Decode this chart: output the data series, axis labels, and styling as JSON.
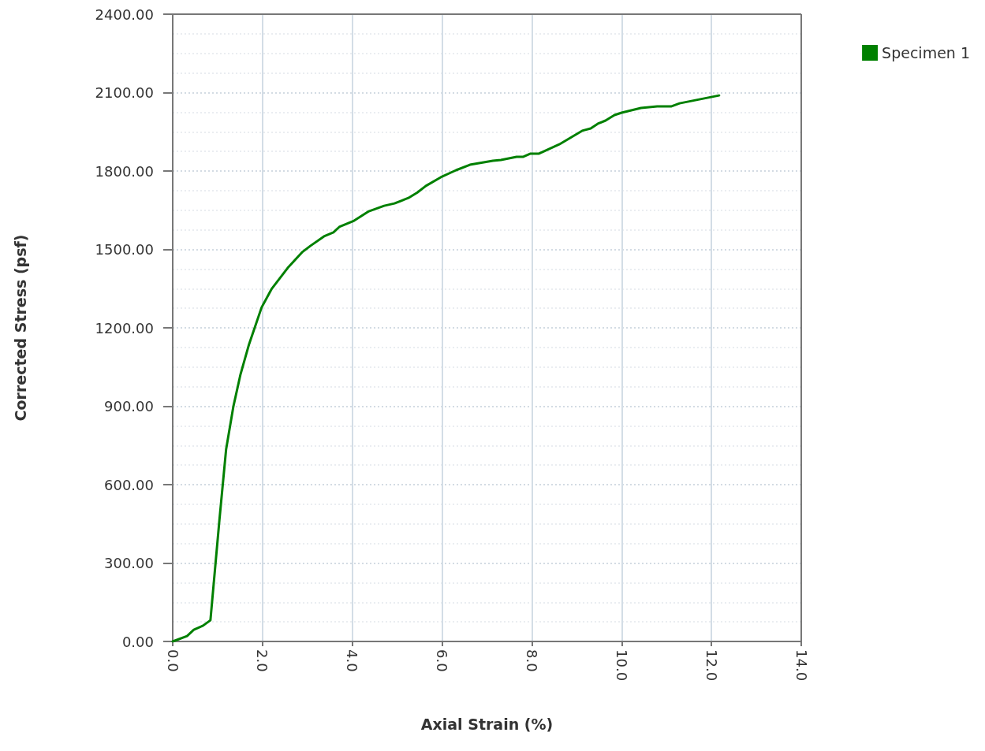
{
  "chart_data": {
    "type": "line",
    "xlabel": "Axial Strain (%)",
    "ylabel": "Corrected Stress (psf)",
    "xlim": [
      0,
      14
    ],
    "xticks": [
      {
        "value": 0,
        "label": "0.0"
      },
      {
        "value": 2,
        "label": "2.0"
      },
      {
        "value": 4,
        "label": "4.0"
      },
      {
        "value": 6,
        "label": "6.0"
      },
      {
        "value": 8,
        "label": "8.0"
      },
      {
        "value": 10,
        "label": "10.0"
      },
      {
        "value": 12,
        "label": "12.0"
      },
      {
        "value": 14,
        "label": "14.0"
      }
    ],
    "ylim": [
      0,
      2400
    ],
    "yticks": [
      {
        "value": 0,
        "label": "0.00"
      },
      {
        "value": 300,
        "label": "300.00"
      },
      {
        "value": 600,
        "label": "600.00"
      },
      {
        "value": 900,
        "label": "900.00"
      },
      {
        "value": 1200,
        "label": "1200.00"
      },
      {
        "value": 1500,
        "label": "1500.00"
      },
      {
        "value": 1800,
        "label": "1800.00"
      },
      {
        "value": 2100,
        "label": "2100.00"
      },
      {
        "value": 2400,
        "label": "2400.00"
      }
    ],
    "grid": true,
    "legend": "top right",
    "marker": "none",
    "line_style": "solid",
    "series": [
      {
        "name": "Specimen 1",
        "color": "#008000",
        "x": [
          0,
          0.32,
          0.47,
          0.67,
          0.84,
          1.04,
          1.19,
          1.35,
          1.51,
          1.7,
          1.98,
          2.2,
          2.56,
          2.88,
          3.07,
          3.37,
          3.58,
          3.71,
          4.04,
          4.37,
          4.71,
          4.94,
          5.25,
          5.45,
          5.64,
          5.97,
          6.31,
          6.62,
          7.13,
          7.31,
          7.66,
          7.8,
          7.96,
          8.15,
          8.61,
          9.12,
          9.31,
          9.47,
          9.64,
          9.84,
          10.0,
          10.43,
          10.79,
          11.1,
          11.29,
          12.17
        ],
        "values": [
          0,
          21,
          45,
          60,
          81,
          464,
          736,
          898,
          1022,
          1137,
          1278,
          1348,
          1429,
          1489,
          1514,
          1550,
          1565,
          1586,
          1610,
          1646,
          1667,
          1676,
          1697,
          1718,
          1743,
          1776,
          1803,
          1824,
          1839,
          1842,
          1854,
          1854,
          1866,
          1866,
          1902,
          1954,
          1963,
          1981,
          1993,
          2014,
          2023,
          2041,
          2047,
          2047,
          2059,
          2089
        ]
      }
    ]
  }
}
